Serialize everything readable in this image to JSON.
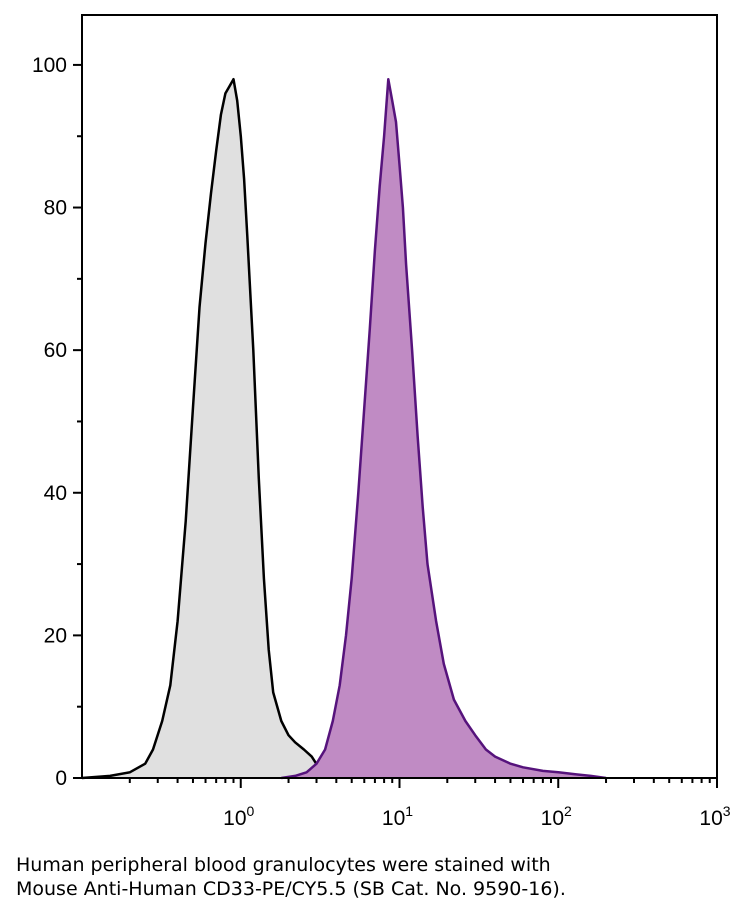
{
  "chart_data": {
    "type": "area",
    "title": "",
    "xlabel": "",
    "ylabel": "",
    "x_scale": "log",
    "xlim": [
      0.1,
      1000
    ],
    "ylim": [
      0,
      107
    ],
    "x_ticks": [
      {
        "value": 1,
        "base": "10",
        "exp": "0"
      },
      {
        "value": 10,
        "base": "10",
        "exp": "1"
      },
      {
        "value": 100,
        "base": "10",
        "exp": "2"
      },
      {
        "value": 1000,
        "base": "10",
        "exp": "3"
      }
    ],
    "y_ticks": [
      0,
      20,
      40,
      60,
      80,
      100
    ],
    "grid": false,
    "legend": "none",
    "series": [
      {
        "fill": "#e0e0e0",
        "stroke": "#000000",
        "x": [
          0.1,
          0.15,
          0.2,
          0.25,
          0.28,
          0.32,
          0.36,
          0.4,
          0.45,
          0.5,
          0.55,
          0.6,
          0.65,
          0.7,
          0.75,
          0.8,
          0.85,
          0.9,
          0.95,
          1.0,
          1.05,
          1.1,
          1.2,
          1.3,
          1.4,
          1.5,
          1.6,
          1.8,
          2.0,
          2.2,
          2.5,
          2.8,
          3.2,
          3.6
        ],
        "y": [
          0,
          0.3,
          0.8,
          2,
          4,
          8,
          13,
          22,
          36,
          52,
          66,
          75,
          82,
          88,
          93,
          96,
          97,
          98,
          95,
          90,
          84,
          76,
          60,
          42,
          28,
          18,
          12,
          8,
          6,
          5,
          4,
          3,
          1,
          0
        ]
      },
      {
        "fill": "#c08bc4",
        "stroke": "#56137c",
        "x": [
          1.8,
          2.2,
          2.6,
          3.0,
          3.4,
          3.8,
          4.2,
          4.6,
          5.0,
          5.5,
          6.0,
          6.5,
          7.0,
          7.5,
          8.0,
          8.5,
          9.0,
          9.5,
          10.0,
          10.5,
          11,
          12,
          13,
          14,
          15,
          17,
          19,
          22,
          26,
          30,
          35,
          40,
          50,
          60,
          80,
          100,
          130,
          160,
          200
        ],
        "y": [
          0,
          0.3,
          0.8,
          2,
          4,
          8,
          13,
          20,
          28,
          40,
          52,
          63,
          74,
          83,
          90,
          98,
          95,
          92,
          86,
          80,
          72,
          60,
          48,
          38,
          30,
          22,
          16,
          11,
          8,
          6,
          4,
          3,
          2,
          1.5,
          1,
          0.8,
          0.5,
          0.3,
          0
        ]
      }
    ]
  },
  "caption": {
    "line1": "Human peripheral blood granulocytes were stained with",
    "line2": "Mouse Anti-Human CD33-PE/CY5.5 (SB Cat. No. 9590-16)."
  }
}
